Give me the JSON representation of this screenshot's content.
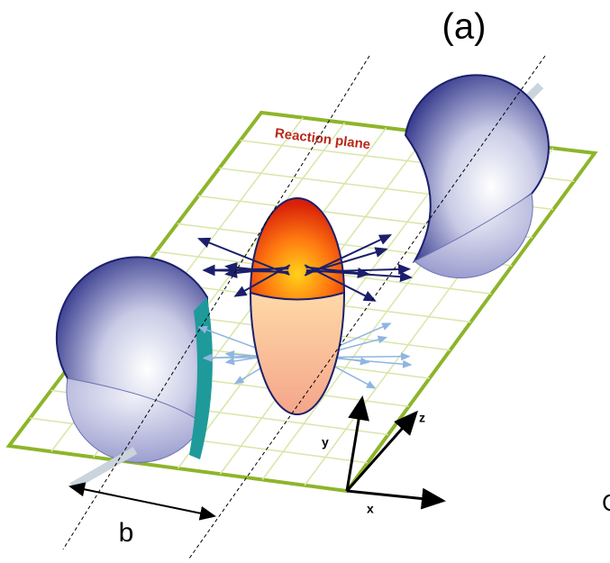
{
  "title": "(a)",
  "plane_label": "Reaction plane",
  "axes": {
    "x": "x",
    "y": "y",
    "z": "z"
  },
  "impact_parameter": "b",
  "cut_text": "C"
}
